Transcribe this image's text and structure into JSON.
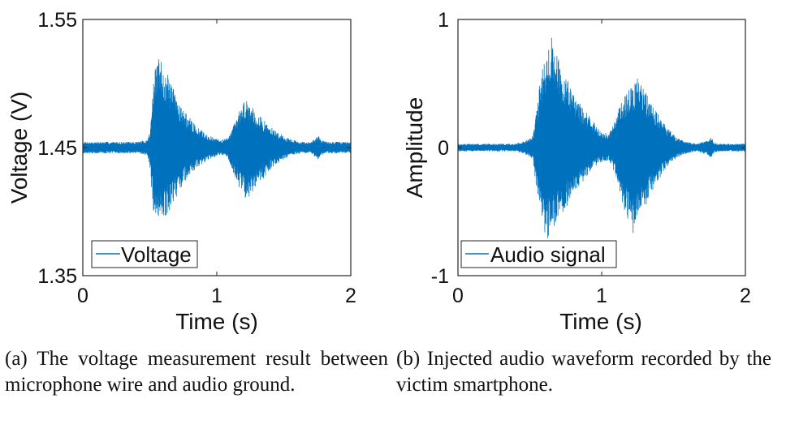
{
  "chart_data": [
    {
      "type": "line",
      "panel": "a",
      "xlabel": "Time (s)",
      "ylabel": "Voltage (V)",
      "xlim": [
        0,
        2
      ],
      "ylim": [
        1.35,
        1.55
      ],
      "xticks": [
        0,
        1,
        2
      ],
      "xtick_labels": [
        "0",
        "1",
        "2"
      ],
      "yticks": [
        1.35,
        1.45,
        1.55
      ],
      "ytick_labels": [
        "1.35",
        "1.45",
        "1.55"
      ],
      "grid": false,
      "legend": "bottom-left",
      "series": [
        {
          "name": "Voltage",
          "color": "#0072bd",
          "baseline": 1.45,
          "envelope": {
            "t": [
              0.0,
              0.4,
              0.48,
              0.5,
              0.53,
              0.56,
              0.6,
              0.66,
              0.75,
              0.85,
              0.95,
              1.02,
              1.07,
              1.1,
              1.14,
              1.18,
              1.22,
              1.26,
              1.32,
              1.4,
              1.46,
              1.52,
              1.6,
              1.7,
              1.74,
              1.76,
              1.78,
              1.82,
              1.9,
              2.0
            ],
            "upper": [
              1.4545,
              1.4545,
              1.456,
              1.462,
              1.505,
              1.522,
              1.516,
              1.5,
              1.48,
              1.466,
              1.459,
              1.456,
              1.457,
              1.462,
              1.471,
              1.482,
              1.489,
              1.484,
              1.475,
              1.466,
              1.462,
              1.458,
              1.455,
              1.454,
              1.458,
              1.461,
              1.456,
              1.4545,
              1.4545,
              1.4545
            ],
            "lower": [
              1.4455,
              1.4455,
              1.444,
              1.436,
              1.396,
              1.385,
              1.391,
              1.404,
              1.422,
              1.434,
              1.441,
              1.444,
              1.443,
              1.437,
              1.426,
              1.416,
              1.409,
              1.414,
              1.422,
              1.433,
              1.438,
              1.442,
              1.445,
              1.446,
              1.442,
              1.44,
              1.444,
              1.4455,
              1.4455,
              1.4455
            ]
          }
        }
      ]
    },
    {
      "type": "line",
      "panel": "b",
      "xlabel": "Time (s)",
      "ylabel": "Amplitude",
      "xlim": [
        0,
        2
      ],
      "ylim": [
        -1,
        1
      ],
      "xticks": [
        0,
        1,
        2
      ],
      "xtick_labels": [
        "0",
        "1",
        "2"
      ],
      "yticks": [
        -1,
        0,
        1
      ],
      "ytick_labels": [
        "-1",
        "0",
        "1"
      ],
      "grid": false,
      "legend": "bottom-left",
      "series": [
        {
          "name": "Audio signal",
          "color": "#0072bd",
          "baseline": 0,
          "envelope": {
            "t": [
              0.0,
              0.4,
              0.48,
              0.52,
              0.55,
              0.58,
              0.62,
              0.65,
              0.7,
              0.78,
              0.88,
              0.98,
              1.05,
              1.1,
              1.13,
              1.17,
              1.21,
              1.25,
              1.28,
              1.33,
              1.4,
              1.46,
              1.52,
              1.58,
              1.66,
              1.74,
              1.76,
              1.78,
              1.82,
              1.9,
              2.0
            ],
            "upper": [
              0.03,
              0.03,
              0.06,
              0.09,
              0.3,
              0.6,
              0.85,
              0.88,
              0.72,
              0.5,
              0.3,
              0.15,
              0.1,
              0.24,
              0.36,
              0.42,
              0.5,
              0.55,
              0.48,
              0.38,
              0.25,
              0.15,
              0.08,
              0.05,
              0.03,
              0.06,
              0.1,
              0.04,
              0.03,
              0.03,
              0.03
            ],
            "lower": [
              -0.03,
              -0.03,
              -0.06,
              -0.09,
              -0.35,
              -0.62,
              -0.72,
              -0.68,
              -0.58,
              -0.42,
              -0.25,
              -0.12,
              -0.1,
              -0.22,
              -0.4,
              -0.55,
              -0.7,
              -0.62,
              -0.52,
              -0.4,
              -0.25,
              -0.14,
              -0.08,
              -0.05,
              -0.03,
              -0.06,
              -0.1,
              -0.04,
              -0.03,
              -0.03,
              -0.03
            ]
          }
        }
      ]
    }
  ],
  "captions": {
    "a": "(a) The voltage measurement result between microphone wire and audio ground.",
    "b": "(b) Injected audio waveform recorded by the victim smartphone."
  }
}
